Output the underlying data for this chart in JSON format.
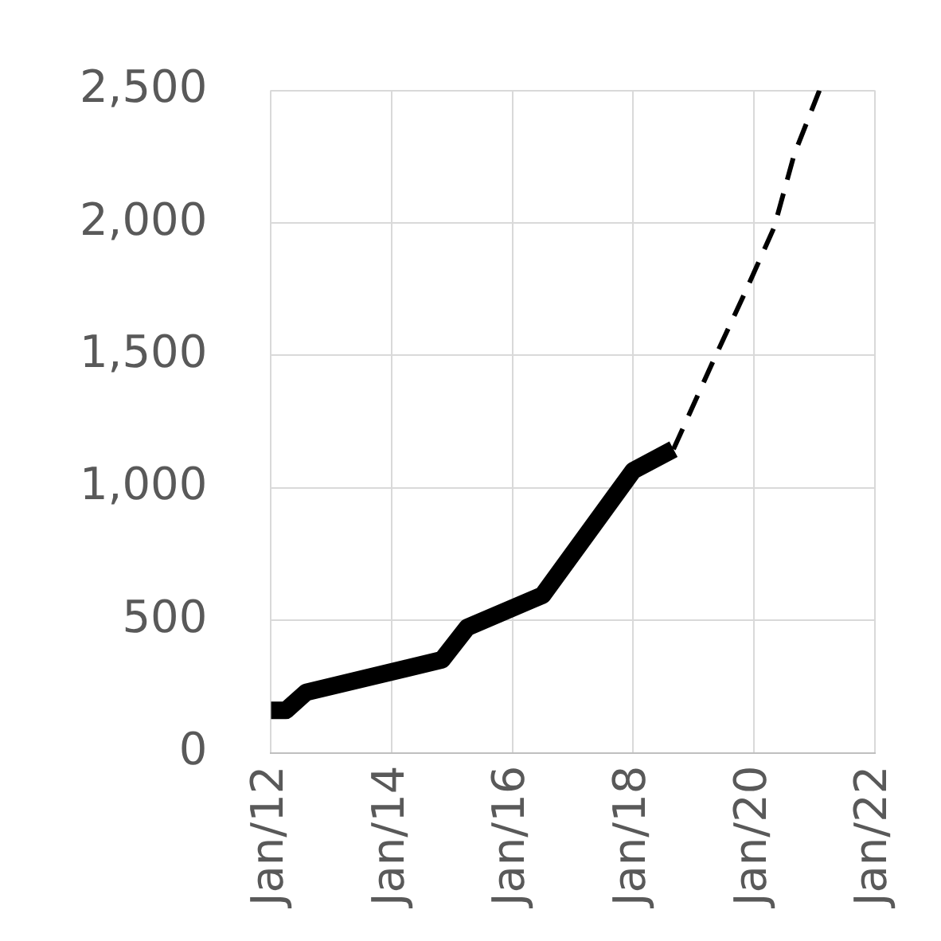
{
  "chart_data": {
    "type": "line",
    "x": [
      "2012-01",
      "2012-04",
      "2012-08",
      "2014-11",
      "2015-04",
      "2016-07",
      "2018-01",
      "2018-09"
    ],
    "series": [
      {
        "color": "#000000",
        "line_style": "solid",
        "values": [
          160,
          160,
          228,
          351,
          473,
          595,
          1065,
          1146
        ]
      },
      {
        "color": "#000000",
        "line_style": "dashed",
        "x": [
          "2018-09",
          "2019-05",
          "2019-11",
          "2020-05",
          "2020-09",
          "2021-02"
        ],
        "values": [
          1146,
          1483,
          1728,
          1983,
          2259,
          2500
        ]
      }
    ],
    "xlim": [
      "2012-01",
      "2022-01"
    ],
    "xticks": [
      {
        "value": "2012-01",
        "label": "Jan/12"
      },
      {
        "value": "2014-01",
        "label": "Jan/14"
      },
      {
        "value": "2016-01",
        "label": "Jan/16"
      },
      {
        "value": "2018-01",
        "label": "Jan/18"
      },
      {
        "value": "2020-01",
        "label": "Jan/20"
      },
      {
        "value": "2022-01",
        "label": "Jan/22"
      }
    ],
    "ylim": [
      0,
      2500
    ],
    "yticks": [
      0,
      500,
      {
        "value": 1000,
        "label": "1,000"
      },
      {
        "value": 1500,
        "label": "1,500"
      },
      {
        "value": 2000,
        "label": "2,000"
      },
      {
        "value": 2500,
        "label": "2,500"
      }
    ],
    "grid": true,
    "legend": false,
    "marker": "none"
  }
}
